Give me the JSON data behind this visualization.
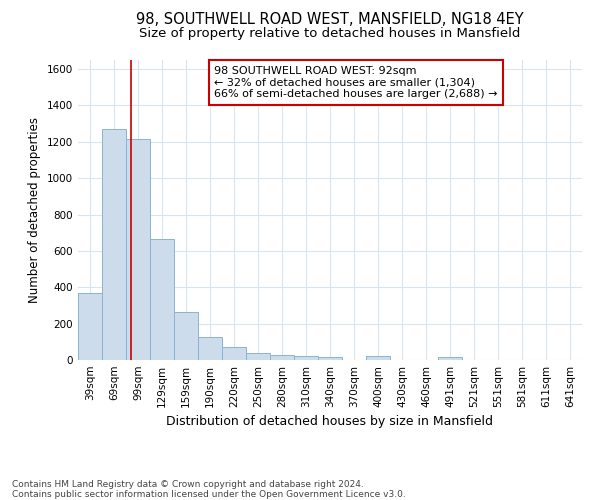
{
  "title_line1": "98, SOUTHWELL ROAD WEST, MANSFIELD, NG18 4EY",
  "title_line2": "Size of property relative to detached houses in Mansfield",
  "xlabel": "Distribution of detached houses by size in Mansfield",
  "ylabel": "Number of detached properties",
  "footnote": "Contains HM Land Registry data © Crown copyright and database right 2024.\nContains public sector information licensed under the Open Government Licence v3.0.",
  "bar_labels": [
    "39sqm",
    "69sqm",
    "99sqm",
    "129sqm",
    "159sqm",
    "190sqm",
    "220sqm",
    "250sqm",
    "280sqm",
    "310sqm",
    "340sqm",
    "370sqm",
    "400sqm",
    "430sqm",
    "460sqm",
    "491sqm",
    "521sqm",
    "551sqm",
    "581sqm",
    "611sqm",
    "641sqm"
  ],
  "bar_values": [
    370,
    1270,
    1215,
    665,
    265,
    125,
    72,
    38,
    25,
    20,
    18,
    0,
    20,
    0,
    0,
    18,
    0,
    0,
    0,
    0,
    0
  ],
  "bar_color": "#cddceb",
  "bar_edge_color": "#8ab4d4",
  "annotation_text": "98 SOUTHWELL ROAD WEST: 92sqm\n← 32% of detached houses are smaller (1,304)\n66% of semi-detached houses are larger (2,688) →",
  "annotation_box_color": "#ffffff",
  "annotation_box_edge": "#cc0000",
  "ylim": [
    0,
    1650
  ],
  "yticks": [
    0,
    200,
    400,
    600,
    800,
    1000,
    1200,
    1400,
    1600
  ],
  "background_color": "#ffffff",
  "grid_color": "#d8e4f0",
  "title_fontsize": 10.5,
  "subtitle_fontsize": 9.5,
  "xlabel_fontsize": 9,
  "ylabel_fontsize": 8.5,
  "tick_fontsize": 7.5,
  "annotation_fontsize": 8,
  "footnote_fontsize": 6.5
}
